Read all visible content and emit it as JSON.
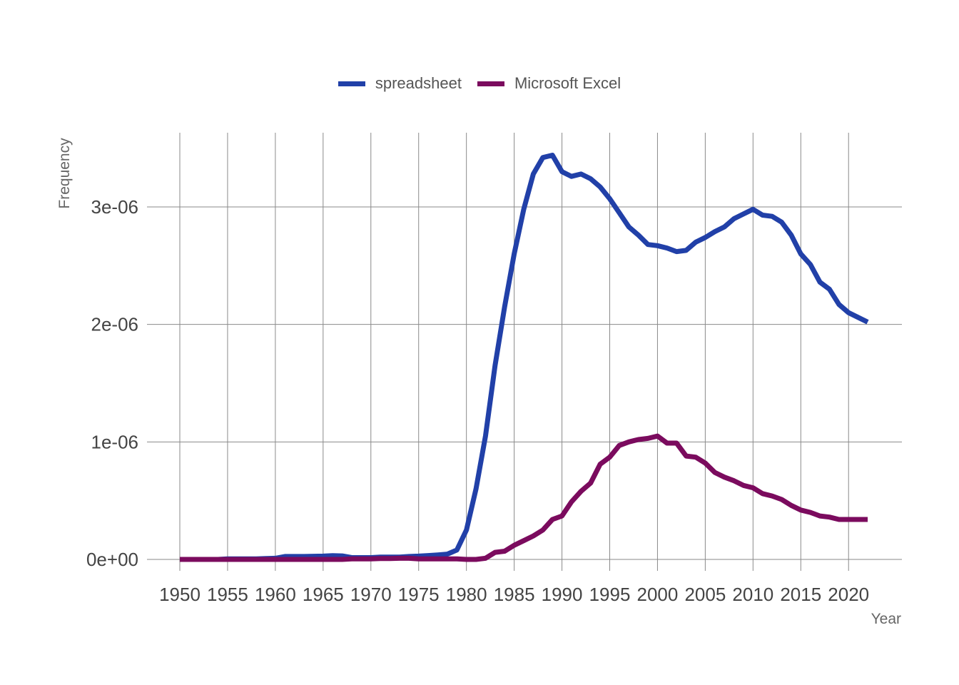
{
  "chart_data": {
    "type": "line",
    "title": "",
    "xlabel": "Year",
    "ylabel": "Frequency",
    "xlim": [
      1950,
      2022
    ],
    "ylim": [
      0,
      3.5e-06
    ],
    "x_ticks": [
      1950,
      1955,
      1960,
      1965,
      1970,
      1975,
      1980,
      1985,
      1990,
      1995,
      2000,
      2005,
      2010,
      2015,
      2020
    ],
    "y_ticks": [
      0,
      1e-06,
      2e-06,
      3e-06
    ],
    "y_tick_labels": [
      "0e+00",
      "1e-06",
      "2e-06",
      "3e-06"
    ],
    "grid": true,
    "legend_position": "top",
    "x": [
      1950,
      1951,
      1952,
      1953,
      1954,
      1955,
      1956,
      1957,
      1958,
      1959,
      1960,
      1961,
      1962,
      1963,
      1964,
      1965,
      1966,
      1967,
      1968,
      1969,
      1970,
      1971,
      1972,
      1973,
      1974,
      1975,
      1976,
      1977,
      1978,
      1979,
      1980,
      1981,
      1982,
      1983,
      1984,
      1985,
      1986,
      1987,
      1988,
      1989,
      1990,
      1991,
      1992,
      1993,
      1994,
      1995,
      1996,
      1997,
      1998,
      1999,
      2000,
      2001,
      2002,
      2003,
      2004,
      2005,
      2006,
      2007,
      2008,
      2009,
      2010,
      2011,
      2012,
      2013,
      2014,
      2015,
      2016,
      2017,
      2018,
      2019,
      2020,
      2021,
      2022
    ],
    "series": [
      {
        "name": "spreadsheet",
        "color": "#2140a8",
        "values": [
          0.0,
          0.0,
          0.0,
          0.0,
          0.0,
          5e-09,
          5e-09,
          5e-09,
          5e-09,
          8e-09,
          1e-08,
          2.5e-08,
          2.5e-08,
          2.5e-08,
          2.7e-08,
          2.8e-08,
          3.2e-08,
          3e-08,
          1.5e-08,
          1.5e-08,
          1.5e-08,
          2e-08,
          2e-08,
          2e-08,
          2.5e-08,
          2.8e-08,
          3.3e-08,
          3.8e-08,
          4.5e-08,
          8e-08,
          2.5e-07,
          6e-07,
          1.05e-06,
          1.65e-06,
          2.15e-06,
          2.6e-06,
          2.98e-06,
          3.28e-06,
          3.42e-06,
          3.44e-06,
          3.3e-06,
          3.26e-06,
          3.28e-06,
          3.24e-06,
          3.17e-06,
          3.07e-06,
          2.95e-06,
          2.83e-06,
          2.76e-06,
          2.68e-06,
          2.67e-06,
          2.65e-06,
          2.62e-06,
          2.63e-06,
          2.7e-06,
          2.74e-06,
          2.79e-06,
          2.83e-06,
          2.9e-06,
          2.94e-06,
          2.98e-06,
          2.93e-06,
          2.92e-06,
          2.87e-06,
          2.76e-06,
          2.6e-06,
          2.51e-06,
          2.36e-06,
          2.3e-06,
          2.17e-06,
          2.1e-06,
          2.06e-06,
          2.02e-06
        ]
      },
      {
        "name": "Microsoft Excel",
        "color": "#7b0b5e",
        "values": [
          0.0,
          0.0,
          0.0,
          0.0,
          0.0,
          0.0,
          0.0,
          0.0,
          0.0,
          0.0,
          0.0,
          0.0,
          0.0,
          0.0,
          0.0,
          0.0,
          0.0,
          0.0,
          5e-09,
          5e-09,
          5e-09,
          8e-09,
          8e-09,
          1e-08,
          1e-08,
          5e-09,
          5e-09,
          5e-09,
          5e-09,
          5e-09,
          0.0,
          0.0,
          1e-08,
          6e-08,
          7e-08,
          1.2e-07,
          1.6e-07,
          2e-07,
          2.5e-07,
          3.4e-07,
          3.7e-07,
          4.9e-07,
          5.8e-07,
          6.5e-07,
          8.1e-07,
          8.7e-07,
          9.7e-07,
          1e-06,
          1.02e-06,
          1.03e-06,
          1.05e-06,
          9.9e-07,
          9.9e-07,
          8.8e-07,
          8.7e-07,
          8.2e-07,
          7.4e-07,
          7e-07,
          6.7e-07,
          6.3e-07,
          6.1e-07,
          5.6e-07,
          5.4e-07,
          5.1e-07,
          4.6e-07,
          4.2e-07,
          4e-07,
          3.7e-07,
          3.6e-07,
          3.4e-07,
          3.4e-07,
          3.4e-07,
          3.4e-07
        ]
      }
    ]
  }
}
